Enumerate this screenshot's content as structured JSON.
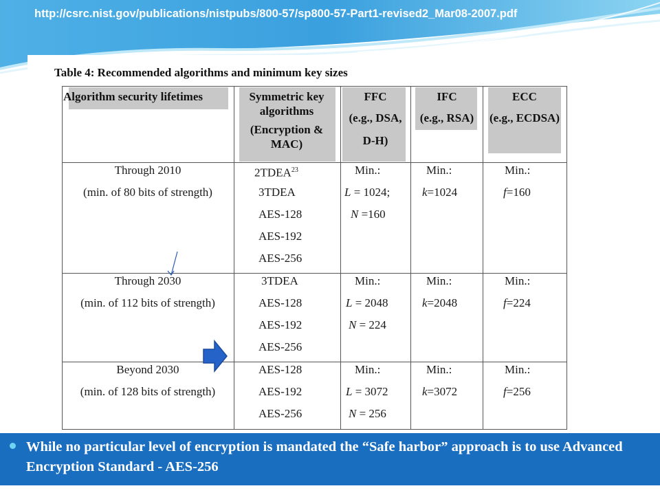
{
  "header": {
    "url": "http://csrc.nist.gov/publications/nistpubs/800-57/sp800-57-Part1-revised2_Mar08-2007.pdf"
  },
  "table": {
    "caption": "Table 4: Recommended algorithms and minimum key sizes",
    "headers": {
      "lifetimes": "Algorithm security lifetimes",
      "symmetric_line1": "Symmetric key",
      "symmetric_line2": "algorithms",
      "symmetric_line3": "(Encryption &",
      "symmetric_line4": "MAC)",
      "ffc_line1": "FFC",
      "ffc_line2": "(e.g., DSA,",
      "ffc_line3": "D-H)",
      "ifc_line1": "IFC",
      "ifc_line2": "(e.g., RSA)",
      "ecc_line1": "ECC",
      "ecc_line2": "(e.g., ECDSA)"
    },
    "rows": [
      {
        "lifetime": "Through 2010",
        "strength": "(min. of 80 bits of strength)",
        "symmetric": [
          "2TDEA",
          "3TDEA",
          "AES-128",
          "AES-192",
          "AES-256"
        ],
        "footnote": "23",
        "ffc": [
          "Min.:",
          "L = 1024;",
          "N =160"
        ],
        "ifc": [
          "Min.:",
          "k=1024"
        ],
        "ecc": [
          "Min.:",
          "f=160"
        ]
      },
      {
        "lifetime": "Through 2030",
        "strength": "(min. of 112 bits of strength)",
        "symmetric": [
          "3TDEA",
          "AES-128",
          "AES-192",
          "AES-256"
        ],
        "ffc": [
          "Min.:",
          "L = 2048",
          "N = 224"
        ],
        "ifc": [
          "Min.:",
          "k=2048"
        ],
        "ecc": [
          "Min.:",
          "f=224"
        ]
      },
      {
        "lifetime": "Beyond 2030",
        "strength": "(min. of 128 bits of strength)",
        "symmetric": [
          "AES-128",
          "AES-192",
          "AES-256"
        ],
        "ffc": [
          "Min.:",
          "L = 3072",
          "N = 256"
        ],
        "ifc": [
          "Min.:",
          "k=3072"
        ],
        "ecc": [
          "Min.:",
          "f=256"
        ]
      }
    ]
  },
  "bullet": {
    "text": "While no particular level of encryption is mandated the “Safe harbor” approach is to use Advanced Encryption Standard - AES-256"
  },
  "colors": {
    "panel": "#1a6ec0",
    "arrow": "#2563c9",
    "bullet_dot": "#6fd3f2"
  },
  "icons": {
    "arrow": "right-arrow-icon",
    "pointer": "pointer-line-icon",
    "bullet": "bullet-dot-icon"
  }
}
